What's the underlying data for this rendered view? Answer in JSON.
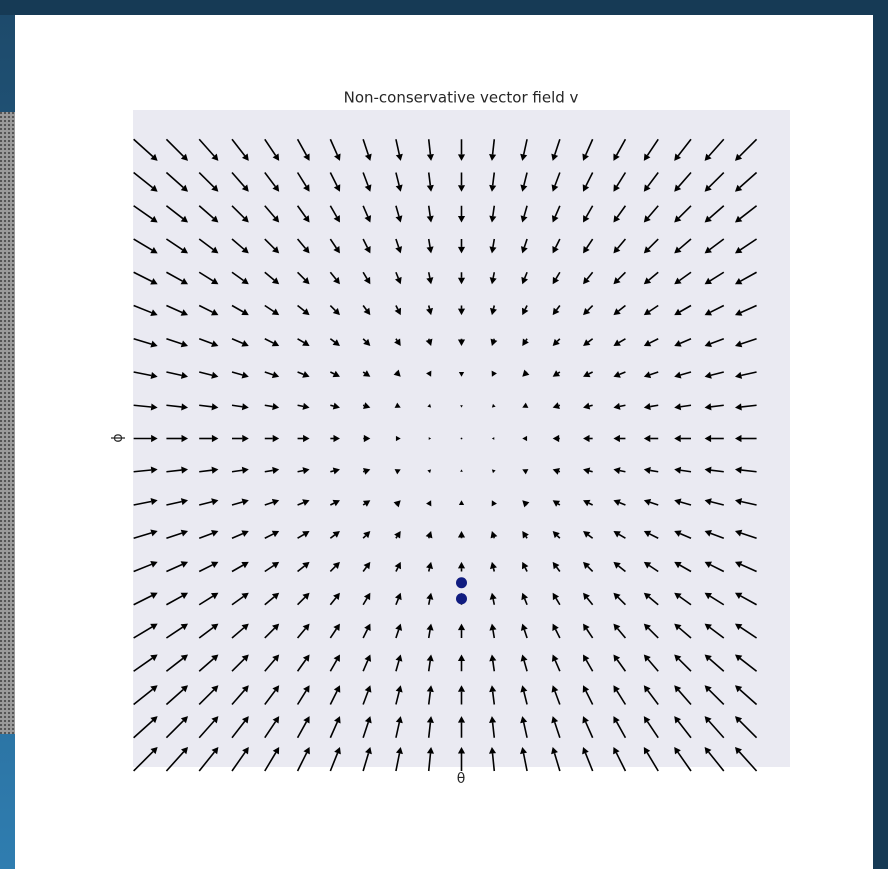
{
  "chart_data": {
    "type": "quiver",
    "title": "Non-conservative vector field v",
    "xlabel": "θ",
    "ylabel": "ϕ",
    "x": [
      -2,
      -1.8,
      -1.6,
      -1.4,
      -1.2,
      -1,
      -0.8,
      -0.6,
      -0.4,
      -0.2,
      0,
      0.2,
      0.4,
      0.6,
      0.8,
      1,
      1.2,
      1.4,
      1.6,
      1.8
    ],
    "y": [
      1.8,
      1.6,
      1.4,
      1.2,
      1,
      0.8,
      0.6,
      0.4,
      0.2,
      0,
      -0.2,
      -0.4,
      -0.6,
      -0.8,
      -1,
      -1.2,
      -1.4,
      -1.6,
      -1.8,
      -2
    ],
    "u": [
      [
        2,
        1.8,
        1.6,
        1.4,
        1.2,
        1,
        0.8,
        0.6,
        0.4,
        0.2,
        0,
        -0.2,
        -0.4,
        -0.6,
        -0.8,
        -1,
        -1.2,
        -1.4,
        -1.6,
        -1.8
      ],
      [
        2,
        1.8,
        1.6,
        1.4,
        1.2,
        1,
        0.8,
        0.6,
        0.4,
        0.2,
        0,
        -0.2,
        -0.4,
        -0.6,
        -0.8,
        -1,
        -1.2,
        -1.4,
        -1.6,
        -1.8
      ],
      [
        2,
        1.8,
        1.6,
        1.4,
        1.2,
        1,
        0.8,
        0.6,
        0.4,
        0.2,
        0,
        -0.2,
        -0.4,
        -0.6,
        -0.8,
        -1,
        -1.2,
        -1.4,
        -1.6,
        -1.8
      ],
      [
        2,
        1.8,
        1.6,
        1.4,
        1.2,
        1,
        0.8,
        0.6,
        0.4,
        0.2,
        0,
        -0.2,
        -0.4,
        -0.6,
        -0.8,
        -1,
        -1.2,
        -1.4,
        -1.6,
        -1.8
      ],
      [
        2,
        1.8,
        1.6,
        1.4,
        1.2,
        1,
        0.8,
        0.6,
        0.4,
        0.2,
        0,
        -0.2,
        -0.4,
        -0.6,
        -0.8,
        -1,
        -1.2,
        -1.4,
        -1.6,
        -1.8
      ],
      [
        2,
        1.8,
        1.6,
        1.4,
        1.2,
        1,
        0.8,
        0.6,
        0.4,
        0.2,
        0,
        -0.2,
        -0.4,
        -0.6,
        -0.8,
        -1,
        -1.2,
        -1.4,
        -1.6,
        -1.8
      ],
      [
        2,
        1.8,
        1.6,
        1.4,
        1.2,
        1,
        0.8,
        0.6,
        0.4,
        0.2,
        0,
        -0.2,
        -0.4,
        -0.6,
        -0.8,
        -1,
        -1.2,
        -1.4,
        -1.6,
        -1.8
      ],
      [
        2,
        1.8,
        1.6,
        1.4,
        1.2,
        1,
        0.8,
        0.6,
        0.4,
        0.2,
        0,
        -0.2,
        -0.4,
        -0.6,
        -0.8,
        -1,
        -1.2,
        -1.4,
        -1.6,
        -1.8
      ],
      [
        2,
        1.8,
        1.6,
        1.4,
        1.2,
        1,
        0.8,
        0.6,
        0.4,
        0.2,
        0,
        -0.2,
        -0.4,
        -0.6,
        -0.8,
        -1,
        -1.2,
        -1.4,
        -1.6,
        -1.8
      ],
      [
        2,
        1.8,
        1.6,
        1.4,
        1.2,
        1,
        0.8,
        0.6,
        0.4,
        0.2,
        0,
        -0.2,
        -0.4,
        -0.6,
        -0.8,
        -1,
        -1.2,
        -1.4,
        -1.6,
        -1.8
      ],
      [
        2,
        1.8,
        1.6,
        1.4,
        1.2,
        1,
        0.8,
        0.6,
        0.4,
        0.2,
        0,
        -0.2,
        -0.4,
        -0.6,
        -0.8,
        -1,
        -1.2,
        -1.4,
        -1.6,
        -1.8
      ],
      [
        2,
        1.8,
        1.6,
        1.4,
        1.2,
        1,
        0.8,
        0.6,
        0.4,
        0.2,
        0,
        -0.2,
        -0.4,
        -0.6,
        -0.8,
        -1,
        -1.2,
        -1.4,
        -1.6,
        -1.8
      ],
      [
        2,
        1.8,
        1.6,
        1.4,
        1.2,
        1,
        0.8,
        0.6,
        0.4,
        0.2,
        0,
        -0.2,
        -0.4,
        -0.6,
        -0.8,
        -1,
        -1.2,
        -1.4,
        -1.6,
        -1.8
      ],
      [
        2,
        1.8,
        1.6,
        1.4,
        1.2,
        1,
        0.8,
        0.6,
        0.4,
        0.2,
        0,
        -0.2,
        -0.4,
        -0.6,
        -0.8,
        -1,
        -1.2,
        -1.4,
        -1.6,
        -1.8
      ],
      [
        2,
        1.8,
        1.6,
        1.4,
        1.2,
        1,
        0.8,
        0.6,
        0.4,
        0.2,
        0,
        -0.2,
        -0.4,
        -0.6,
        -0.8,
        -1,
        -1.2,
        -1.4,
        -1.6,
        -1.8
      ],
      [
        2,
        1.8,
        1.6,
        1.4,
        1.2,
        1,
        0.8,
        0.6,
        0.4,
        0.2,
        0,
        -0.2,
        -0.4,
        -0.6,
        -0.8,
        -1,
        -1.2,
        -1.4,
        -1.6,
        -1.8
      ],
      [
        2,
        1.8,
        1.6,
        1.4,
        1.2,
        1,
        0.8,
        0.6,
        0.4,
        0.2,
        0,
        -0.2,
        -0.4,
        -0.6,
        -0.8,
        -1,
        -1.2,
        -1.4,
        -1.6,
        -1.8
      ],
      [
        2,
        1.8,
        1.6,
        1.4,
        1.2,
        1,
        0.8,
        0.6,
        0.4,
        0.2,
        0,
        -0.2,
        -0.4,
        -0.6,
        -0.8,
        -1,
        -1.2,
        -1.4,
        -1.6,
        -1.8
      ],
      [
        2,
        1.8,
        1.6,
        1.4,
        1.2,
        1,
        0.8,
        0.6,
        0.4,
        0.2,
        0,
        -0.2,
        -0.4,
        -0.6,
        -0.8,
        -1,
        -1.2,
        -1.4,
        -1.6,
        -1.8
      ],
      [
        2,
        1.8,
        1.6,
        1.4,
        1.2,
        1,
        0.8,
        0.6,
        0.4,
        0.2,
        0,
        -0.2,
        -0.4,
        -0.6,
        -0.8,
        -1,
        -1.2,
        -1.4,
        -1.6,
        -1.8
      ]
    ],
    "v": [
      [
        -1.8,
        -1.8,
        -1.8,
        -1.8,
        -1.8,
        -1.8,
        -1.8,
        -1.8,
        -1.8,
        -1.8,
        -1.8,
        -1.8,
        -1.8,
        -1.8,
        -1.8,
        -1.8,
        -1.8,
        -1.8,
        -1.8,
        -1.8
      ],
      [
        -1.6,
        -1.6,
        -1.6,
        -1.6,
        -1.6,
        -1.6,
        -1.6,
        -1.6,
        -1.6,
        -1.6,
        -1.6,
        -1.6,
        -1.6,
        -1.6,
        -1.6,
        -1.6,
        -1.6,
        -1.6,
        -1.6,
        -1.6
      ],
      [
        -1.4,
        -1.4,
        -1.4,
        -1.4,
        -1.4,
        -1.4,
        -1.4,
        -1.4,
        -1.4,
        -1.4,
        -1.4,
        -1.4,
        -1.4,
        -1.4,
        -1.4,
        -1.4,
        -1.4,
        -1.4,
        -1.4,
        -1.4
      ],
      [
        -1.2,
        -1.2,
        -1.2,
        -1.2,
        -1.2,
        -1.2,
        -1.2,
        -1.2,
        -1.2,
        -1.2,
        -1.2,
        -1.2,
        -1.2,
        -1.2,
        -1.2,
        -1.2,
        -1.2,
        -1.2,
        -1.2,
        -1.2
      ],
      [
        -1,
        -1,
        -1,
        -1,
        -1,
        -1,
        -1,
        -1,
        -1,
        -1,
        -1,
        -1,
        -1,
        -1,
        -1,
        -1,
        -1,
        -1,
        -1,
        -1
      ],
      [
        -0.8,
        -0.8,
        -0.8,
        -0.8,
        -0.8,
        -0.8,
        -0.8,
        -0.8,
        -0.8,
        -0.8,
        -0.8,
        -0.8,
        -0.8,
        -0.8,
        -0.8,
        -0.8,
        -0.8,
        -0.8,
        -0.8,
        -0.8
      ],
      [
        -0.6,
        -0.6,
        -0.6,
        -0.6,
        -0.6,
        -0.6,
        -0.6,
        -0.6,
        -0.6,
        -0.6,
        -0.6,
        -0.6,
        -0.6,
        -0.6,
        -0.6,
        -0.6,
        -0.6,
        -0.6,
        -0.6,
        -0.6
      ],
      [
        -0.4,
        -0.4,
        -0.4,
        -0.4,
        -0.4,
        -0.4,
        -0.4,
        -0.4,
        -0.4,
        -0.4,
        -0.4,
        -0.4,
        -0.4,
        -0.4,
        -0.4,
        -0.4,
        -0.4,
        -0.4,
        -0.4,
        -0.4
      ],
      [
        -0.2,
        -0.2,
        -0.2,
        -0.2,
        -0.2,
        -0.2,
        -0.2,
        -0.2,
        -0.2,
        -0.2,
        -0.2,
        -0.2,
        -0.2,
        -0.2,
        -0.2,
        -0.2,
        -0.2,
        -0.2,
        -0.2,
        -0.2
      ],
      [
        0,
        0,
        0,
        0,
        0,
        0,
        0,
        0,
        0,
        0,
        0,
        0,
        0,
        0,
        0,
        0,
        0,
        0,
        0,
        0
      ],
      [
        0.2,
        0.2,
        0.2,
        0.2,
        0.2,
        0.2,
        0.2,
        0.2,
        0.2,
        0.2,
        0.2,
        0.2,
        0.2,
        0.2,
        0.2,
        0.2,
        0.2,
        0.2,
        0.2,
        0.2
      ],
      [
        0.4,
        0.4,
        0.4,
        0.4,
        0.4,
        0.4,
        0.4,
        0.4,
        0.4,
        0.4,
        0.4,
        0.4,
        0.4,
        0.4,
        0.4,
        0.4,
        0.4,
        0.4,
        0.4,
        0.4
      ],
      [
        0.6,
        0.6,
        0.6,
        0.6,
        0.6,
        0.6,
        0.6,
        0.6,
        0.6,
        0.6,
        0.6,
        0.6,
        0.6,
        0.6,
        0.6,
        0.6,
        0.6,
        0.6,
        0.6,
        0.6
      ],
      [
        0.8,
        0.8,
        0.8,
        0.8,
        0.8,
        0.8,
        0.8,
        0.8,
        0.8,
        0.8,
        0.8,
        0.8,
        0.8,
        0.8,
        0.8,
        0.8,
        0.8,
        0.8,
        0.8,
        0.8
      ],
      [
        1,
        1,
        1,
        1,
        1,
        1,
        1,
        1,
        1,
        1,
        1,
        1,
        1,
        1,
        1,
        1,
        1,
        1,
        1,
        1
      ],
      [
        1.2,
        1.2,
        1.2,
        1.2,
        1.2,
        1.2,
        1.2,
        1.2,
        1.2,
        1.2,
        1.2,
        1.2,
        1.2,
        1.2,
        1.2,
        1.2,
        1.2,
        1.2,
        1.2,
        1.2
      ],
      [
        1.4,
        1.4,
        1.4,
        1.4,
        1.4,
        1.4,
        1.4,
        1.4,
        1.4,
        1.4,
        1.4,
        1.4,
        1.4,
        1.4,
        1.4,
        1.4,
        1.4,
        1.4,
        1.4,
        1.4
      ],
      [
        1.6,
        1.6,
        1.6,
        1.6,
        1.6,
        1.6,
        1.6,
        1.6,
        1.6,
        1.6,
        1.6,
        1.6,
        1.6,
        1.6,
        1.6,
        1.6,
        1.6,
        1.6,
        1.6,
        1.6
      ],
      [
        1.8,
        1.8,
        1.8,
        1.8,
        1.8,
        1.8,
        1.8,
        1.8,
        1.8,
        1.8,
        1.8,
        1.8,
        1.8,
        1.8,
        1.8,
        1.8,
        1.8,
        1.8,
        1.8,
        1.8
      ],
      [
        2,
        2,
        2,
        2,
        2,
        2,
        2,
        2,
        2,
        2,
        2,
        2,
        2,
        2,
        2,
        2,
        2,
        2,
        2,
        2
      ]
    ],
    "color": "#000000",
    "points": {
      "x": [
        0,
        0
      ],
      "y": [
        -0.9,
        -1.0
      ],
      "color": "#101c80"
    },
    "xlim": [
      -2.08,
      2.08
    ],
    "ylim": [
      -2.05,
      2.05
    ],
    "grid": false
  }
}
